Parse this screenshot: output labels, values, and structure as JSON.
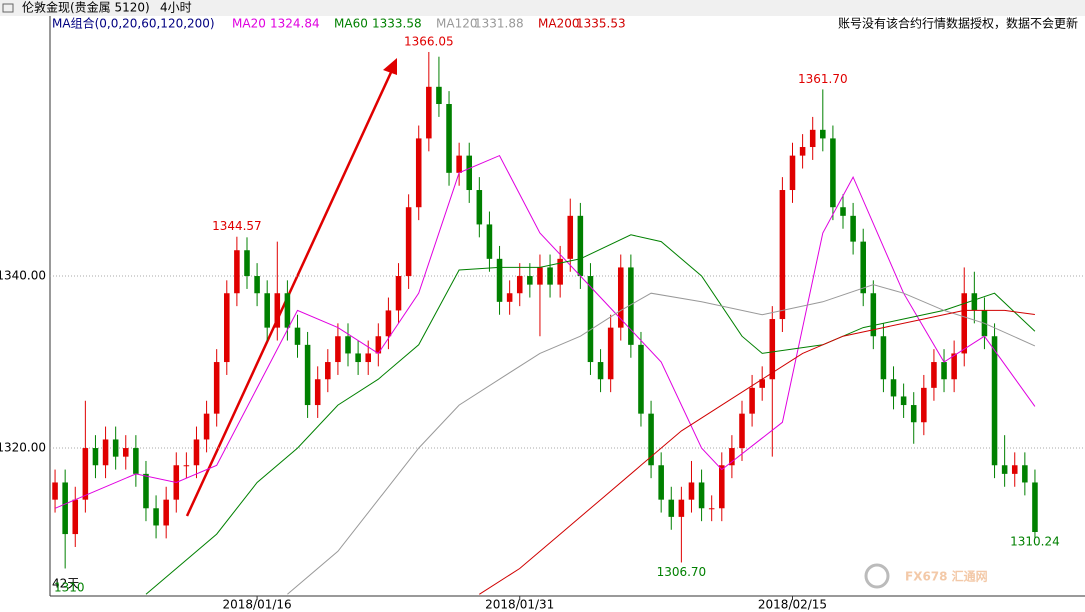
{
  "chart_data": {
    "type": "candlestick",
    "header": {
      "instrument": "伦敦金现(贵金属 5120)",
      "period": "4小时",
      "ma_group": "MA组合(0,0,20,60,120,200)",
      "notice": "账号没有该合约行情数据授权，数据不会更新",
      "span": "42天",
      "corner_value": "1310",
      "watermark": "FX678 汇通网"
    },
    "up_color": "#e00000",
    "down_color": "#008000",
    "open": [
      1314,
      1316,
      1310,
      1314,
      1320,
      1318,
      1321,
      1319,
      1320,
      1317,
      1313,
      1311,
      1314,
      1318,
      1318,
      1321,
      1324,
      1330,
      1338,
      1343,
      1340,
      1338,
      1334,
      1338,
      1334,
      1332,
      1325,
      1328,
      1330,
      1333,
      1331,
      1330,
      1331,
      1333,
      1336,
      1340,
      1348,
      1356,
      1362,
      1360,
      1352,
      1354,
      1350,
      1346,
      1342,
      1337,
      1338,
      1340,
      1339,
      1341,
      1339,
      1342,
      1347,
      1340,
      1330,
      1328,
      1334,
      1341,
      1332,
      1324,
      1318,
      1314,
      1312,
      1314,
      1316,
      1313,
      1313,
      1318,
      1320,
      1324,
      1327,
      1328,
      1335,
      1350,
      1354,
      1355,
      1357,
      1356,
      1348,
      1347,
      1344,
      1338,
      1333,
      1328,
      1326,
      1325,
      1323,
      1327,
      1330,
      1328,
      1331,
      1338,
      1336,
      1333,
      1318,
      1317,
      1318,
      1316
    ],
    "high": [
      1317.5,
      1317.5,
      1315.5,
      1325.5,
      1321.5,
      1322.5,
      1322.5,
      1321.5,
      1321.5,
      1318.5,
      1314.5,
      1315.5,
      1319.5,
      1319.5,
      1322.5,
      1325.5,
      1331.5,
      1339.5,
      1344.57,
      1344.5,
      1341.5,
      1339.5,
      1344,
      1339.5,
      1335.5,
      1333.5,
      1329.5,
      1331.5,
      1334.5,
      1334.5,
      1332.5,
      1332.5,
      1334.5,
      1337.5,
      1341.5,
      1349.5,
      1357.5,
      1366.05,
      1365.5,
      1361.5,
      1355.5,
      1355.5,
      1351.5,
      1347.5,
      1343.5,
      1339.5,
      1341.5,
      1341.5,
      1342.5,
      1342.5,
      1343.5,
      1349,
      1348.5,
      1341.5,
      1331.5,
      1335.5,
      1342.5,
      1342.5,
      1333.5,
      1325.5,
      1319.5,
      1315.5,
      1315.5,
      1318.5,
      1317.5,
      1314.5,
      1319.5,
      1321.5,
      1325.5,
      1328.5,
      1329.5,
      1336.5,
      1351.5,
      1355.5,
      1356.5,
      1358.5,
      1361.7,
      1357.5,
      1349.5,
      1348.5,
      1345.5,
      1339.5,
      1334.5,
      1329.5,
      1327.5,
      1326.5,
      1328.5,
      1331.5,
      1331.5,
      1332.5,
      1341,
      1340.5,
      1337.5,
      1334.5,
      1321.5,
      1319.5,
      1319.5,
      1317.5
    ],
    "low": [
      1312.5,
      1306,
      1308.5,
      1312.5,
      1316.5,
      1316.5,
      1317.5,
      1317.5,
      1315.5,
      1311.5,
      1309.5,
      1309.5,
      1312.5,
      1316.5,
      1316.5,
      1319.5,
      1322.5,
      1328.5,
      1336.5,
      1338.5,
      1336.5,
      1332.5,
      1332.5,
      1332.5,
      1330.5,
      1323.5,
      1323.5,
      1326.5,
      1328.5,
      1329.5,
      1328.5,
      1328.5,
      1329.5,
      1331.5,
      1334.5,
      1338.5,
      1346.5,
      1354.5,
      1358.5,
      1350.5,
      1350.5,
      1348.5,
      1344.5,
      1340.5,
      1335.5,
      1335.5,
      1336.5,
      1337.5,
      1333,
      1337.5,
      1337.5,
      1340.5,
      1338.5,
      1328.5,
      1326.5,
      1326.5,
      1332.5,
      1330.5,
      1322.5,
      1316.5,
      1312.5,
      1310.5,
      1306.7,
      1312.5,
      1311.5,
      1311.5,
      1311.5,
      1316.5,
      1318.5,
      1322.5,
      1325.5,
      1319,
      1333.5,
      1348.5,
      1352.5,
      1353.5,
      1354.5,
      1346.5,
      1345.5,
      1342.5,
      1336.5,
      1331.5,
      1326.5,
      1324.5,
      1323.5,
      1320.5,
      1321.5,
      1325.5,
      1326.5,
      1326.5,
      1329.5,
      1334.5,
      1331.5,
      1316.5,
      1315.5,
      1315.5,
      1314.5,
      1309.5
    ],
    "close": [
      1316,
      1310,
      1314,
      1320,
      1318,
      1321,
      1319,
      1320,
      1317,
      1313,
      1311,
      1314,
      1318,
      1318,
      1321,
      1324,
      1330,
      1338,
      1343,
      1340,
      1338,
      1334,
      1338,
      1334,
      1332,
      1325,
      1328,
      1330,
      1333,
      1331,
      1330,
      1331,
      1333,
      1336,
      1340,
      1348,
      1356,
      1362,
      1360,
      1352,
      1354,
      1350,
      1346,
      1342,
      1337,
      1338,
      1340,
      1339,
      1341,
      1339,
      1342,
      1347,
      1340,
      1330,
      1328,
      1334,
      1341,
      1332,
      1324,
      1318,
      1314,
      1312,
      1314,
      1316,
      1313,
      1313,
      1318,
      1320,
      1324,
      1327,
      1328,
      1335,
      1350,
      1354,
      1355,
      1357,
      1356,
      1348,
      1347,
      1344,
      1338,
      1333,
      1328,
      1326,
      1325,
      1323,
      1327,
      1330,
      1328,
      1331,
      1338,
      1336,
      1333,
      1318,
      1317,
      1318,
      1316,
      1310.24
    ],
    "series": [
      {
        "name": "MA20",
        "last": 1324.84,
        "color": "#e000e0",
        "x": [
          0,
          4,
          8,
          12,
          16,
          20,
          24,
          28,
          32,
          36,
          40,
          44,
          48,
          52,
          56,
          60,
          64,
          66,
          72,
          76,
          79,
          84,
          88,
          92,
          97
        ],
        "values": [
          1313,
          1315,
          1317,
          1316,
          1318,
          1327,
          1336,
          1334,
          1331,
          1338,
          1352,
          1354,
          1345,
          1340,
          1335,
          1330,
          1320,
          1317.5,
          1323,
          1345,
          1351.5,
          1338,
          1330,
          1333,
          1324.84
        ]
      },
      {
        "name": "MA60",
        "last": 1333.58,
        "color": "#008000",
        "x": [
          9,
          12,
          16,
          20,
          24,
          28,
          32,
          36,
          40,
          44,
          48,
          52,
          57,
          60,
          64,
          68,
          70,
          76,
          80,
          84,
          88,
          93,
          97
        ],
        "values": [
          1303,
          1306,
          1310,
          1316,
          1320,
          1325,
          1328,
          1332,
          1340.7,
          1341,
          1341,
          1342,
          1344.8,
          1344,
          1340,
          1333,
          1331,
          1332,
          1334,
          1335,
          1336,
          1338,
          1333.58
        ]
      },
      {
        "name": "MA120",
        "last": 1331.88,
        "color": "#999999",
        "x": [
          23,
          28,
          32,
          36,
          40,
          44,
          48,
          52,
          56,
          59,
          64,
          70,
          76,
          81,
          84,
          88,
          92,
          97
        ],
        "values": [
          1303,
          1308,
          1314,
          1320,
          1325,
          1328,
          1331,
          1333,
          1336,
          1338,
          1337,
          1335.5,
          1337,
          1339,
          1338,
          1336,
          1334.5,
          1331.88
        ]
      },
      {
        "name": "MA200",
        "last": 1335.53,
        "color": "#d00000",
        "x": [
          42,
          46,
          50,
          54,
          58,
          62,
          66,
          70,
          74,
          78,
          82,
          86,
          90,
          94,
          97
        ],
        "values": [
          1303,
          1306,
          1310,
          1314,
          1318,
          1322,
          1325,
          1328,
          1331,
          1333,
          1334,
          1335,
          1336,
          1336,
          1335.53
        ]
      }
    ],
    "annotations": [
      {
        "x": 37,
        "value": 1366.05,
        "label": "1366.05",
        "color": "#e00000"
      },
      {
        "x": 18,
        "value": 1344.57,
        "label": "1344.57",
        "color": "#e00000"
      },
      {
        "x": 76,
        "value": 1361.7,
        "label": "1361.70",
        "color": "#e00000"
      },
      {
        "x": 62,
        "value": 1306.7,
        "label": "1306.70",
        "color": "#008000"
      },
      {
        "x": 97,
        "value": 1310.24,
        "label": "1310.24",
        "color": "#008000"
      }
    ],
    "ylim": [
      1302.8,
      1370
    ],
    "yticks": [
      {
        "value": 1320,
        "label": "1320.00"
      },
      {
        "value": 1340,
        "label": "1340.00"
      }
    ],
    "xticks": [
      {
        "value": 20,
        "label": "2018/01/16"
      },
      {
        "value": 46,
        "label": "2018/01/31"
      },
      {
        "value": 73,
        "label": "2018/02/15"
      }
    ],
    "grid": true
  }
}
